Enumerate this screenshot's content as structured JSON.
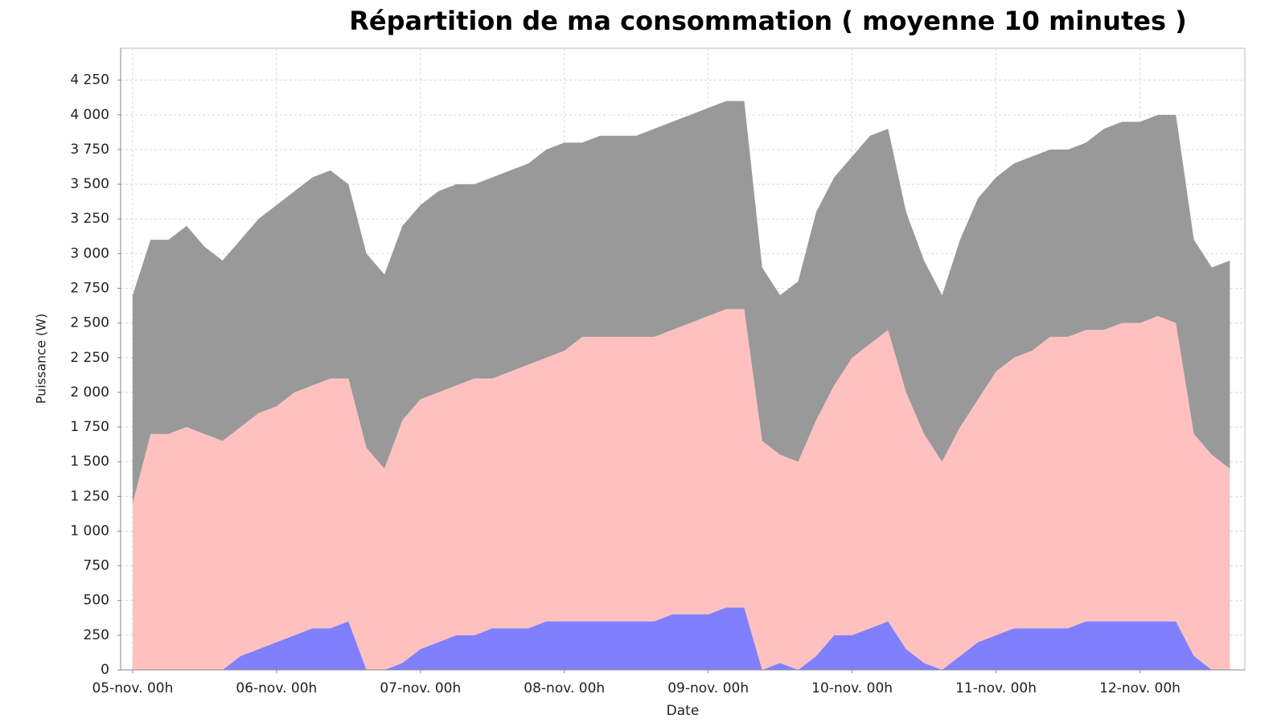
{
  "chart_data": {
    "type": "stacked-area",
    "title": "Répartition de ma consommation  ( moyenne 10 minutes )",
    "x_label": "Date",
    "y_label": "Puissance (W)",
    "x": [
      0,
      3,
      6,
      9,
      12,
      15,
      18,
      21,
      24,
      27,
      30,
      33,
      36,
      39,
      42,
      45,
      48,
      51,
      54,
      57,
      60,
      63,
      66,
      69,
      72,
      75,
      78,
      81,
      84,
      87,
      90,
      93,
      96,
      99,
      102,
      105,
      108,
      111,
      114,
      117,
      120,
      123,
      126,
      129,
      132,
      135,
      138,
      141,
      144,
      147,
      150,
      153,
      156,
      159,
      162,
      165,
      168,
      171,
      174,
      177,
      180,
      183
    ],
    "series": [
      {
        "color": "#8080ff",
        "values": [
          0,
          0,
          0,
          0,
          0,
          0,
          100,
          150,
          200,
          250,
          300,
          300,
          350,
          0,
          0,
          50,
          150,
          200,
          250,
          250,
          300,
          300,
          300,
          350,
          350,
          350,
          350,
          350,
          350,
          350,
          400,
          400,
          400,
          450,
          450,
          0,
          50,
          0,
          100,
          250,
          250,
          300,
          350,
          150,
          50,
          0,
          100,
          200,
          250,
          300,
          300,
          300,
          300,
          350,
          350,
          350,
          350,
          350,
          350,
          100,
          0,
          0
        ]
      },
      {
        "color": "#ffc0c0",
        "values": [
          1200,
          1700,
          1700,
          1750,
          1700,
          1650,
          1650,
          1700,
          1700,
          1750,
          1750,
          1800,
          1750,
          1600,
          1450,
          1750,
          1800,
          1800,
          1800,
          1850,
          1800,
          1850,
          1900,
          1900,
          1950,
          2050,
          2050,
          2050,
          2050,
          2050,
          2050,
          2100,
          2150,
          2150,
          2150,
          1650,
          1500,
          1500,
          1700,
          1800,
          2000,
          2050,
          2100,
          1850,
          1650,
          1500,
          1650,
          1750,
          1900,
          1950,
          2000,
          2100,
          2100,
          2100,
          2100,
          2150,
          2150,
          2200,
          2150,
          1600,
          1550,
          1450
        ]
      },
      {
        "color": "#999999",
        "values": [
          1500,
          1400,
          1400,
          1450,
          1350,
          1300,
          1350,
          1400,
          1450,
          1450,
          1500,
          1500,
          1400,
          1400,
          1400,
          1400,
          1400,
          1450,
          1450,
          1400,
          1450,
          1450,
          1450,
          1500,
          1500,
          1400,
          1450,
          1450,
          1450,
          1500,
          1500,
          1500,
          1500,
          1500,
          1500,
          1250,
          1150,
          1300,
          1500,
          1500,
          1450,
          1500,
          1450,
          1300,
          1250,
          1200,
          1350,
          1450,
          1400,
          1400,
          1400,
          1350,
          1350,
          1350,
          1450,
          1450,
          1450,
          1450,
          1500,
          1400,
          1350,
          1500
        ]
      }
    ],
    "xlim": [
      -2,
      185.5
    ],
    "xticks": [
      {
        "value": 0,
        "label": "05-nov. 00h"
      },
      {
        "value": 24,
        "label": "06-nov. 00h"
      },
      {
        "value": 48,
        "label": "07-nov. 00h"
      },
      {
        "value": 72,
        "label": "08-nov. 00h"
      },
      {
        "value": 96,
        "label": "09-nov. 00h"
      },
      {
        "value": 120,
        "label": "10-nov. 00h"
      },
      {
        "value": 144,
        "label": "11-nov. 00h"
      },
      {
        "value": 168,
        "label": "12-nov. 00h"
      }
    ],
    "ylim": [
      0,
      4480
    ],
    "yticks": [
      0,
      250,
      500,
      750,
      {
        "value": 1000,
        "label": "1 000"
      },
      {
        "value": 1250,
        "label": "1 250"
      },
      {
        "value": 1500,
        "label": "1 500"
      },
      {
        "value": 1750,
        "label": "1 750"
      },
      {
        "value": 2000,
        "label": "2 000"
      },
      {
        "value": 2250,
        "label": "2 250"
      },
      {
        "value": 2500,
        "label": "2 500"
      },
      {
        "value": 2750,
        "label": "2 750"
      },
      {
        "value": 3000,
        "label": "3 000"
      },
      {
        "value": 3250,
        "label": "3 250"
      },
      {
        "value": 3500,
        "label": "3 500"
      },
      {
        "value": 3750,
        "label": "3 750"
      },
      {
        "value": 4000,
        "label": "4 000"
      },
      {
        "value": 4250,
        "label": "4 250"
      }
    ],
    "grid": true
  }
}
